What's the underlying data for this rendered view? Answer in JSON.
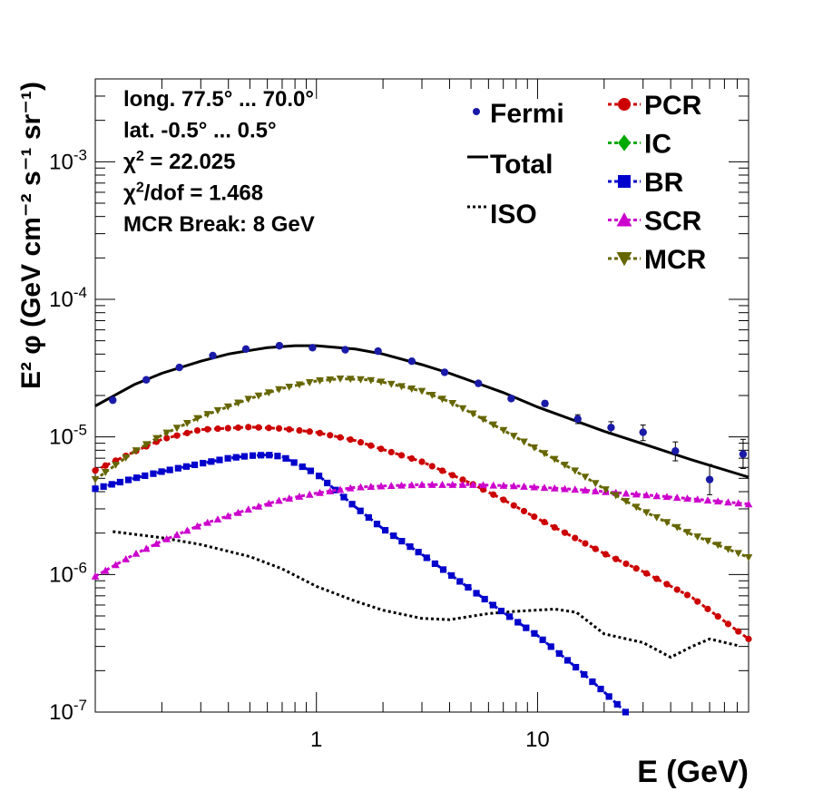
{
  "chart_data": {
    "type": "line",
    "x_scale": "log",
    "y_scale": "log",
    "xlim": [
      0.1,
      90
    ],
    "ylim": [
      1e-07,
      0.004
    ],
    "xlabel": "E (GeV)",
    "ylabel": "E² φ (GeV cm⁻² s⁻¹ sr⁻¹)",
    "x_ticks": [
      {
        "value": 1,
        "label": "1"
      },
      {
        "value": 10,
        "label": "10"
      }
    ],
    "y_ticks": [
      {
        "value": 1e-07,
        "base": "10",
        "exp": "-7"
      },
      {
        "value": 1e-06,
        "base": "10",
        "exp": "-6"
      },
      {
        "value": 1e-05,
        "base": "10",
        "exp": "-5"
      },
      {
        "value": 0.0001,
        "base": "10",
        "exp": "-4"
      },
      {
        "value": 0.001,
        "base": "10",
        "exp": "-3"
      }
    ],
    "info_lines": [
      {
        "text": "long. 77.5° ... 70.0°"
      },
      {
        "text": "lat. -0.5° ... 0.5°"
      },
      {
        "text": "χ",
        "sup": "2",
        "rest": " = 22.025"
      },
      {
        "text": "χ",
        "sup": "2",
        "rest": "/dof = 1.468"
      },
      {
        "text": "MCR Break:  8 GeV"
      }
    ],
    "legend": {
      "left": [
        {
          "name": "Fermi",
          "style": "point",
          "color": "#1a1aa8"
        },
        {
          "name": "Total",
          "style": "solid",
          "color": "#000000"
        },
        {
          "name": "ISO",
          "style": "dotted",
          "color": "#000000"
        }
      ],
      "right": [
        {
          "name": "PCR",
          "style": "circle",
          "color": "#cc0000"
        },
        {
          "name": "IC",
          "style": "diamond",
          "color": "#00aa00"
        },
        {
          "name": "BR",
          "style": "square",
          "color": "#0000cc"
        },
        {
          "name": "SCR",
          "style": "triangle-up",
          "color": "#cc00cc"
        },
        {
          "name": "MCR",
          "style": "triangle-down",
          "color": "#666600"
        }
      ]
    },
    "fermi": {
      "name": "Fermi",
      "color": "#1a1aa8",
      "x": [
        0.12,
        0.17,
        0.24,
        0.34,
        0.48,
        0.68,
        0.96,
        1.35,
        1.9,
        2.7,
        3.8,
        5.4,
        7.6,
        10.8,
        15.2,
        21.5,
        30,
        42,
        60,
        85
      ],
      "y": [
        1.85e-05,
        2.6e-05,
        3.2e-05,
        3.9e-05,
        4.35e-05,
        4.6e-05,
        4.45e-05,
        4.3e-05,
        4.2e-05,
        3.55e-05,
        2.95e-05,
        2.45e-05,
        1.9e-05,
        1.75e-05,
        1.35e-05,
        1.17e-05,
        1.08e-05,
        7.9e-06,
        4.9e-06,
        7.5e-06
      ],
      "err_lo": [
        3e-07,
        4e-07,
        4e-07,
        5e-07,
        5e-07,
        5e-07,
        5e-07,
        5e-07,
        5e-07,
        5e-07,
        5e-07,
        5e-07,
        6e-07,
        8e-07,
        1e-06,
        1.2e-06,
        1.4e-06,
        1.2e-06,
        1.1e-06,
        1.6e-06
      ],
      "err_hi": [
        3e-07,
        4e-07,
        4e-07,
        5e-07,
        5e-07,
        5e-07,
        5e-07,
        5e-07,
        5e-07,
        5e-07,
        5e-07,
        5e-07,
        6e-07,
        8e-07,
        1e-06,
        1.2e-06,
        1.4e-06,
        1.3e-06,
        1.4e-06,
        2.1e-06
      ]
    },
    "series": [
      {
        "name": "Total",
        "color": "#000000",
        "style": "solid",
        "marker": "none",
        "x": [
          0.1,
          0.15,
          0.2,
          0.3,
          0.4,
          0.5,
          0.6,
          0.8,
          1,
          1.5,
          2,
          3,
          4,
          5,
          7,
          10,
          15,
          20,
          30,
          50,
          90
        ],
        "y": [
          1.68e-05,
          2.4e-05,
          2.9e-05,
          3.55e-05,
          4e-05,
          4.25e-05,
          4.45e-05,
          4.6e-05,
          4.6e-05,
          4.35e-05,
          4e-05,
          3.35e-05,
          2.9e-05,
          2.55e-05,
          2.1e-05,
          1.65e-05,
          1.3e-05,
          1.1e-05,
          8.9e-06,
          6.8e-06,
          5.1e-06
        ]
      },
      {
        "name": "ISO",
        "color": "#000000",
        "style": "dotted",
        "marker": "none",
        "x": [
          0.12,
          0.2,
          0.3,
          0.5,
          0.7,
          1,
          1.5,
          2,
          3,
          4,
          6,
          8,
          12,
          15,
          20,
          30,
          40,
          50,
          60,
          80
        ],
        "y": [
          2.05e-06,
          1.85e-06,
          1.65e-06,
          1.35e-06,
          1.1e-06,
          8.2e-07,
          6.4e-07,
          5.5e-07,
          4.8e-07,
          4.7e-07,
          5.2e-07,
          5.4e-07,
          5.6e-07,
          5.3e-07,
          3.7e-07,
          3.2e-07,
          2.5e-07,
          3e-07,
          3.4e-07,
          3.05e-07
        ]
      },
      {
        "name": "PCR",
        "color": "#cc0000",
        "style": "dashed",
        "marker": "circle",
        "x": [
          0.1,
          0.15,
          0.2,
          0.3,
          0.5,
          0.7,
          1,
          1.5,
          2,
          3,
          5,
          7,
          10,
          15,
          20,
          30,
          50,
          90
        ],
        "y": [
          5.7e-06,
          7.8e-06,
          9.6e-06,
          1.13e-05,
          1.18e-05,
          1.15e-05,
          1.08e-05,
          9.4e-06,
          8.1e-06,
          6.6e-06,
          4.6e-06,
          3.5e-06,
          2.55e-06,
          1.82e-06,
          1.42e-06,
          1.05e-06,
          6.8e-07,
          3.4e-07
        ]
      },
      {
        "name": "BR",
        "color": "#0000cc",
        "style": "dashed",
        "marker": "square",
        "x": [
          0.1,
          0.15,
          0.2,
          0.3,
          0.4,
          0.5,
          0.6,
          0.7,
          1,
          1.5,
          2,
          3,
          5,
          7,
          10,
          15,
          20,
          25
        ],
        "y": [
          4.2e-06,
          5e-06,
          5.6e-06,
          6.4e-06,
          7e-06,
          7.3e-06,
          7.4e-06,
          7.2e-06,
          5.4e-06,
          3.1e-06,
          2.15e-06,
          1.4e-06,
          7.8e-07,
          5.3e-07,
          3.6e-07,
          2.1e-07,
          1.4e-07,
          1e-07
        ]
      },
      {
        "name": "SCR",
        "color": "#cc00cc",
        "style": "dashed",
        "marker": "triangle-up",
        "x": [
          0.1,
          0.15,
          0.2,
          0.3,
          0.5,
          0.7,
          1,
          1.5,
          2,
          3,
          5,
          8,
          15,
          30,
          50,
          90
        ],
        "y": [
          9.7e-07,
          1.4e-06,
          1.75e-06,
          2.3e-06,
          3e-06,
          3.5e-06,
          3.9e-06,
          4.3e-06,
          4.4e-06,
          4.5e-06,
          4.5e-06,
          4.4e-06,
          4.15e-06,
          3.8e-06,
          3.55e-06,
          3.25e-06
        ]
      },
      {
        "name": "MCR",
        "color": "#666600",
        "style": "dashed",
        "marker": "triangle-down",
        "x": [
          0.1,
          0.15,
          0.2,
          0.3,
          0.5,
          0.7,
          1,
          1.3,
          1.7,
          2,
          3,
          4,
          5,
          7,
          10,
          15,
          20,
          30,
          50,
          90
        ],
        "y": [
          4.9e-06,
          7.8e-06,
          1.03e-05,
          1.4e-05,
          1.9e-05,
          2.25e-05,
          2.55e-05,
          2.65e-05,
          2.6e-05,
          2.5e-05,
          2.15e-05,
          1.8e-05,
          1.5e-05,
          1.12e-05,
          8.1e-06,
          5.6e-06,
          4.2e-06,
          2.9e-06,
          1.95e-06,
          1.33e-06
        ]
      }
    ]
  }
}
